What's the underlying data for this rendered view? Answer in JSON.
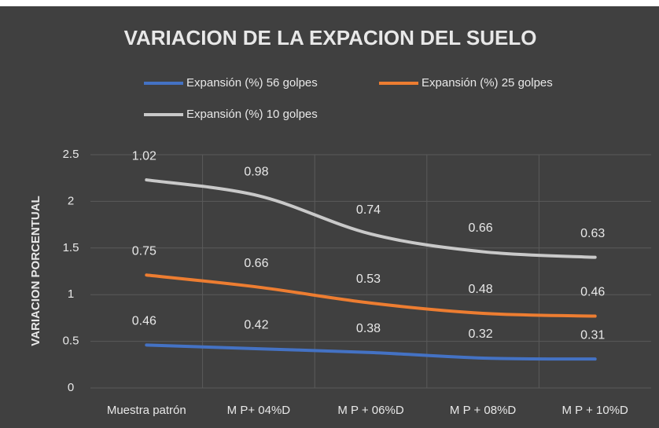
{
  "chart_data": {
    "type": "line",
    "stacked": true,
    "title": "VARIACION DE LA EXPACION DEL SUELO",
    "y_label": "VARIACION PORCENTUAL",
    "categories": [
      "Muestra patrón",
      "M P+ 04%D",
      "M P + 06%D",
      "M P + 08%D",
      "M P + 10%D"
    ],
    "series": [
      {
        "name": "Expansión (%) 56 golpes",
        "color": "#4472c4",
        "values": [
          0.46,
          0.42,
          0.38,
          0.32,
          0.31
        ]
      },
      {
        "name": "Expansión (%) 25 golpes",
        "color": "#ed7d31",
        "values": [
          0.75,
          0.66,
          0.53,
          0.48,
          0.46
        ]
      },
      {
        "name": "Expansión (%) 10 golpes",
        "color": "#c9c9c9",
        "values": [
          1.02,
          0.98,
          0.74,
          0.66,
          0.63
        ]
      }
    ],
    "ylim": [
      0,
      2.5
    ],
    "yticks": [
      0,
      0.5,
      1,
      1.5,
      2,
      2.5
    ],
    "grid": true,
    "legend": "top"
  }
}
